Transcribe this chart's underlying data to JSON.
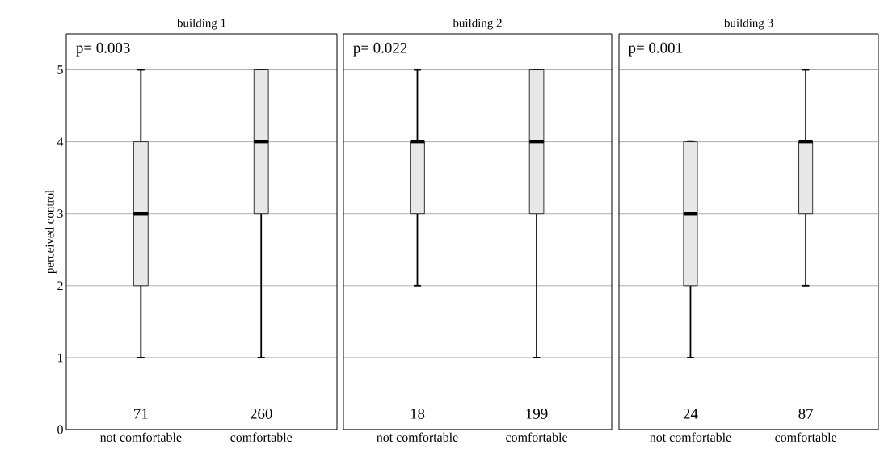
{
  "chart_data": [
    {
      "type": "box",
      "title": "building 1",
      "ylabel": "perceived control",
      "categories": [
        "not comfortable",
        "comfortable"
      ],
      "color": "#e8e8e8",
      "boxes": [
        {
          "low": 1,
          "q1": 2,
          "median": 3,
          "q3": 4,
          "high": 5
        },
        {
          "low": 1,
          "q1": 3,
          "median": 4,
          "q3": 5,
          "high": 5
        }
      ],
      "ylim": [
        0,
        5.5
      ],
      "yticks": [
        0,
        1,
        2,
        3,
        4,
        5
      ],
      "grid": "y",
      "annotations": [
        "p= 0.003",
        "71",
        "260"
      ]
    },
    {
      "type": "box",
      "title": "building 2",
      "categories": [
        "not comfortable",
        "comfortable"
      ],
      "color": "#e8e8e8",
      "boxes": [
        {
          "low": 2,
          "q1": 3,
          "median": 4,
          "q3": 4,
          "high": 5
        },
        {
          "low": 1,
          "q1": 3,
          "median": 4,
          "q3": 5,
          "high": 5
        }
      ],
      "ylim": [
        0,
        5.5
      ],
      "yticks": [
        0,
        1,
        2,
        3,
        4,
        5
      ],
      "grid": "y",
      "tick_labels": "x",
      "annotations": [
        "p= 0.022",
        "18",
        "199"
      ]
    },
    {
      "type": "box",
      "title": "building 3",
      "categories": [
        "not comfortable",
        "comfortable"
      ],
      "color": "#e8e8e8",
      "boxes": [
        {
          "low": 1,
          "q1": 2,
          "median": 3,
          "q3": 4,
          "high": 4
        },
        {
          "low": 2,
          "q1": 3,
          "median": 4,
          "q3": 4,
          "high": 5
        }
      ],
      "ylim": [
        0,
        5.5
      ],
      "yticks": [
        0,
        1,
        2,
        3,
        4,
        5
      ],
      "grid": "y",
      "tick_labels": "x",
      "annotations": [
        "p= 0.001",
        "24",
        "87"
      ]
    }
  ]
}
